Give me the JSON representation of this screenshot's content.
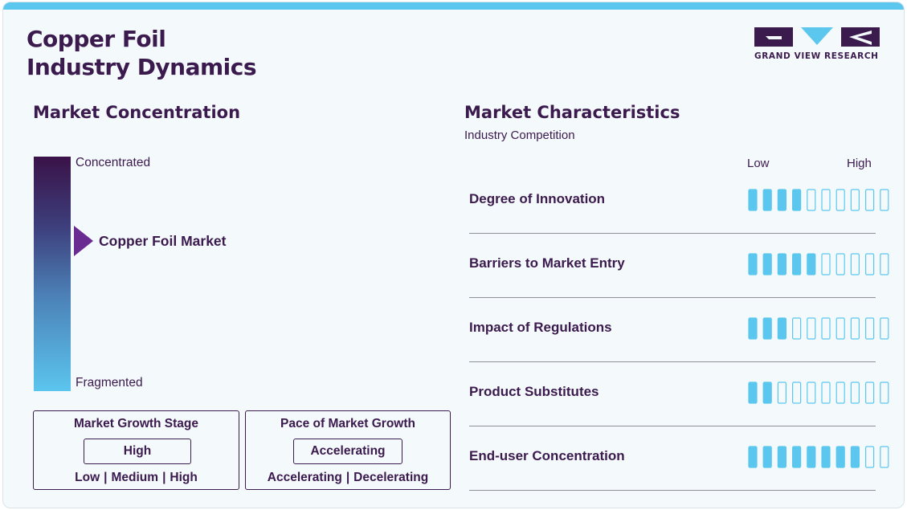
{
  "header": {
    "title_line1": "Copper Foil",
    "title_line2": "Industry Dynamics",
    "brand": "GRAND VIEW RESEARCH"
  },
  "concentration": {
    "heading": "Market Concentration",
    "top_label": "Concentrated",
    "bottom_label": "Fragmented",
    "marker_label": "Copper Foil Market",
    "marker_level": 0.36
  },
  "growth_stage": {
    "title": "Market Growth Stage",
    "value": "High",
    "options": [
      "Low",
      "Medium",
      "High"
    ]
  },
  "growth_pace": {
    "title": "Pace of Market Growth",
    "value": "Accelerating",
    "options": [
      "Accelerating",
      "Decelerating"
    ]
  },
  "characteristics": {
    "heading": "Market Characteristics",
    "subheading": "Industry Competition",
    "scale_low": "Low",
    "scale_high": "High"
  },
  "chart_data": {
    "type": "bar",
    "title": "Market Characteristics",
    "subtitle": "Industry Competition",
    "categories": [
      "Degree of Innovation",
      "Barriers to Market Entry",
      "Impact of Regulations",
      "Product Substitutes",
      "End-user Concentration"
    ],
    "values": [
      4,
      5,
      3,
      2,
      8
    ],
    "max": 10,
    "scale_labels": [
      "Low",
      "High"
    ]
  },
  "colors": {
    "brand_purple": "#3b1a4e",
    "accent_cyan": "#5bc7ef",
    "marker_purple": "#6a2c91"
  }
}
